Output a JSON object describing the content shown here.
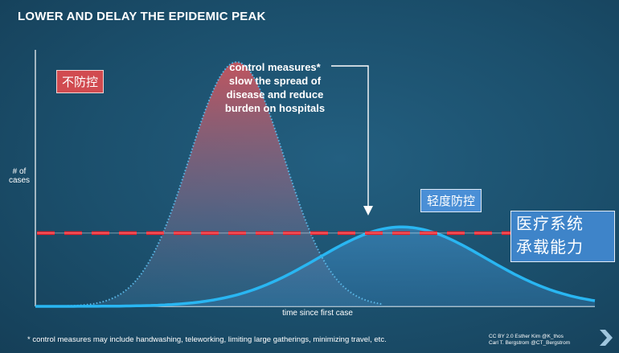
{
  "title": "LOWER AND DELAY THE EPIDEMIC PEAK",
  "annotation": [
    "control measures*",
    "slow the spread of",
    "disease and reduce",
    "burden on hospitals"
  ],
  "label_no_control": "不防控",
  "label_mild_control": "轻度防控",
  "label_capacity": [
    "医疗系统",
    "承载能力"
  ],
  "footnote": "* control measures may include handwashing, teleworking, limiting large gatherings, minimizing travel, etc.",
  "credit": [
    "CC BY 2.0  Esther Kim  @K_thos",
    "Carl T. Bergstrom  @CT_Bergstrom"
  ],
  "colors": {
    "background": "#1b4f6c",
    "no_control_curve": "#5ab8e8",
    "no_control_fill_top": "#c8555e",
    "mild_control_curve": "#29b6f2",
    "capacity_line": "#e8202a",
    "label_box_blue": "#4a8fd6",
    "label_box_red": "#d14b50"
  },
  "chart_data": {
    "type": "area",
    "xlabel": "time since first case",
    "ylabel": [
      "# of",
      "cases"
    ],
    "series": [
      {
        "name": "不防控",
        "style": "dotted outline, red-to-transparent fill",
        "curve": "gaussian",
        "peak_x": 0.36,
        "peak_y": 1.0,
        "width": 0.085
      },
      {
        "name": "轻度防控",
        "style": "solid line, translucent blue fill",
        "curve": "gaussian",
        "peak_x": 0.655,
        "peak_y": 0.325,
        "width": 0.15
      }
    ],
    "reference_lines": [
      {
        "name": "医疗系统承载能力",
        "y": 0.3,
        "style": "dashed"
      }
    ],
    "xlim": [
      0,
      1
    ],
    "ylim": [
      0,
      1.05
    ],
    "grid": false,
    "legend": "none (inline labels)"
  }
}
